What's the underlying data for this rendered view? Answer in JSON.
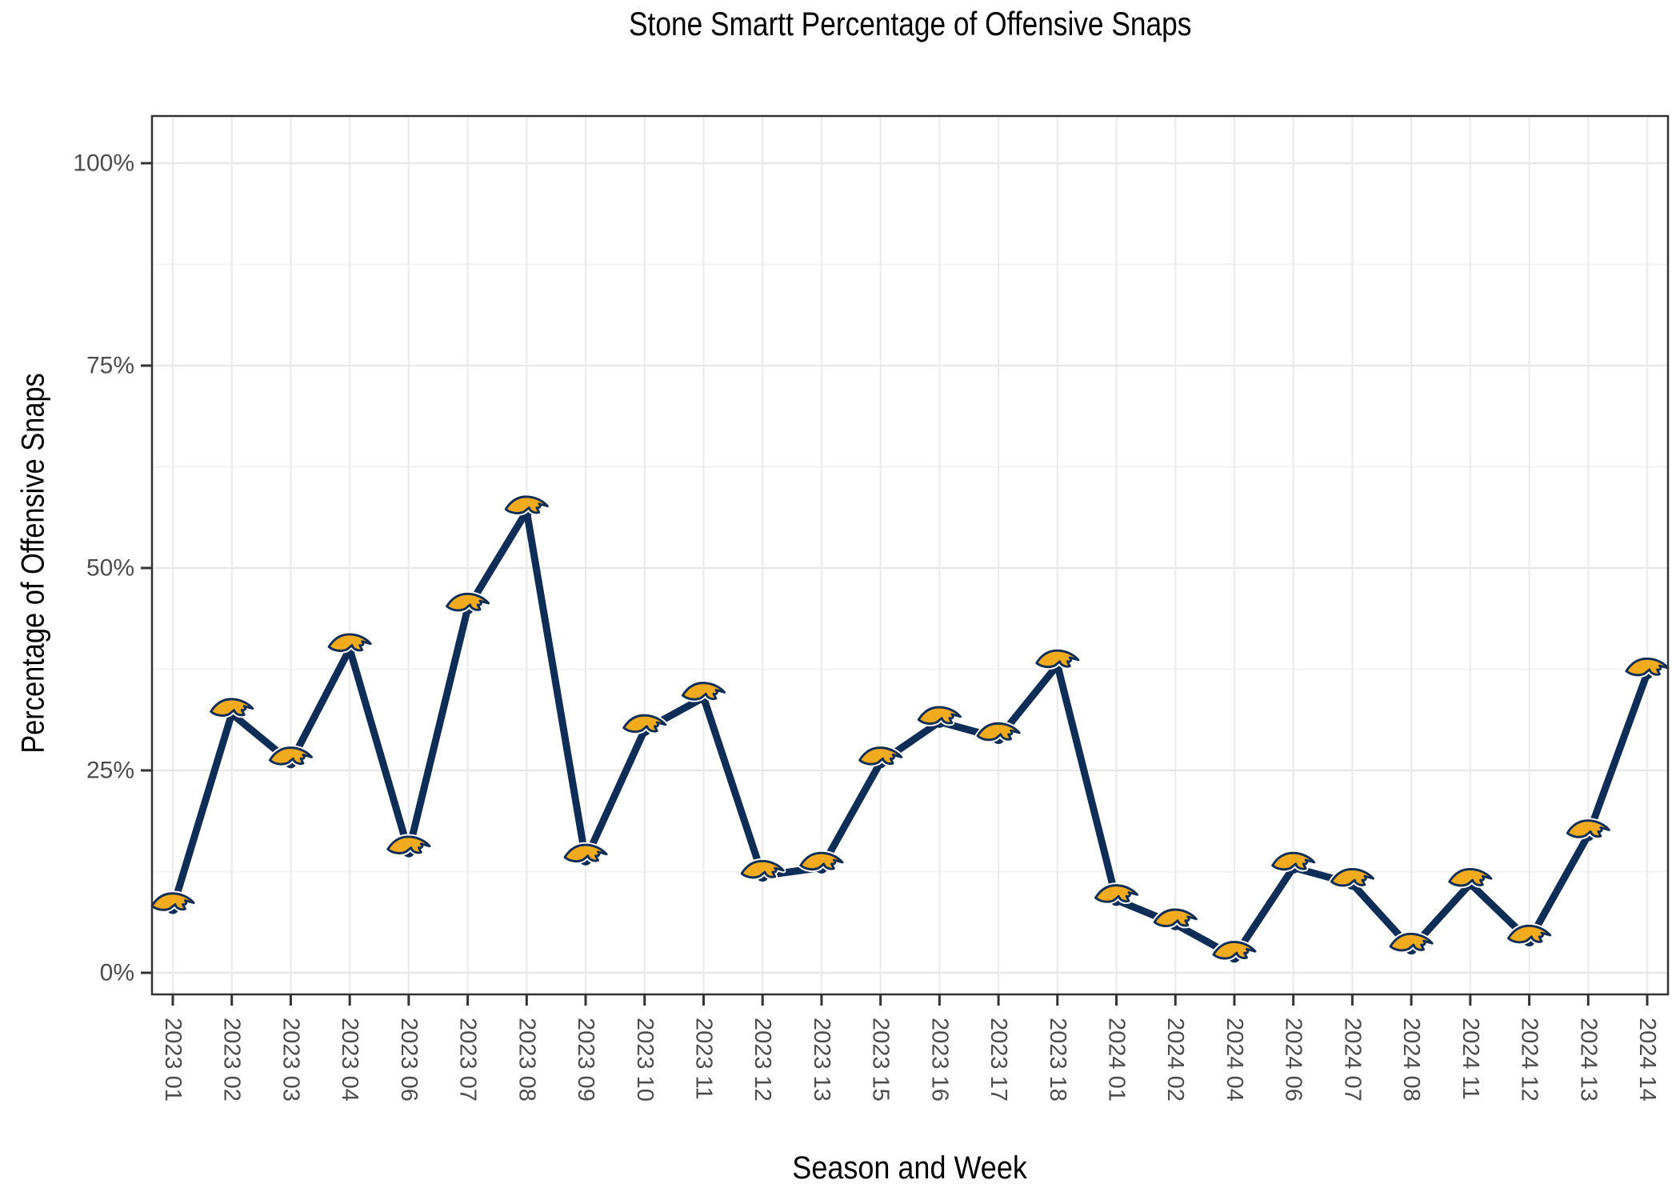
{
  "chart_data": {
    "type": "line",
    "title": "Stone Smartt Percentage of Offensive Snaps",
    "xlabel": "Season and Week",
    "ylabel": "Percentage of Offensive Snaps",
    "categories": [
      "2023 01",
      "2023 02",
      "2023 03",
      "2023 04",
      "2023 06",
      "2023 07",
      "2023 08",
      "2023 09",
      "2023 10",
      "2023 11",
      "2023 12",
      "2023 13",
      "2023 15",
      "2023 16",
      "2023 17",
      "2023 18",
      "2024 01",
      "2024 02",
      "2024 04",
      "2024 06",
      "2024 07",
      "2024 08",
      "2024 11",
      "2024 12",
      "2024 13",
      "2024 14"
    ],
    "values": [
      8,
      32,
      26,
      40,
      15,
      45,
      57,
      14,
      30,
      34,
      12,
      13,
      26,
      31,
      29,
      38,
      9,
      6,
      2,
      13,
      11,
      3,
      11,
      4,
      17,
      37
    ],
    "ylim": [
      0,
      100
    ],
    "yticks": [
      0,
      25,
      50,
      75,
      100
    ],
    "ytick_labels": [
      "0%",
      "25%",
      "50%",
      "75%",
      "100%"
    ],
    "yminor": [
      12.5,
      37.5,
      62.5,
      87.5
    ],
    "grid": true,
    "legend": "none",
    "marker": "chargers-bolt-icon",
    "colors": {
      "line": "#0e2d57",
      "marker_gold": "#f2ab1c",
      "marker_navy": "#0e2d57",
      "marker_halo": "#ffffff",
      "grid_major": "#e7e7e7",
      "grid_minor": "#f1f1f1",
      "panel_border": "#333333",
      "tick": "#333333",
      "tick_label": "#4d4d4d",
      "text": "#000000"
    }
  }
}
